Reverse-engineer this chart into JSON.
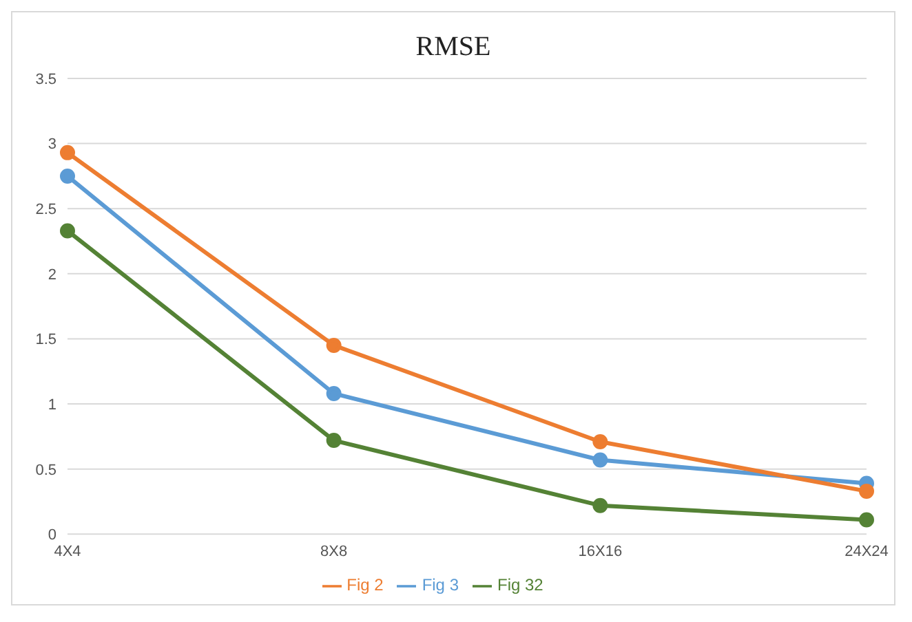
{
  "chart_data": {
    "type": "line",
    "title": "RMSE",
    "categories": [
      "4X4",
      "8X8",
      "16X16",
      "24X24"
    ],
    "series": [
      {
        "name": "Fig 3",
        "color": "#5b9bd5",
        "values": [
          2.75,
          1.08,
          0.57,
          0.39
        ]
      },
      {
        "name": "Fig 2",
        "color": "#ed7d31",
        "values": [
          2.93,
          1.45,
          0.71,
          0.33
        ]
      },
      {
        "name": "Fig 32",
        "color": "#548235",
        "values": [
          2.33,
          0.72,
          0.22,
          0.11
        ]
      }
    ],
    "ylim": [
      0,
      3.5
    ],
    "yticks": [
      0,
      0.5,
      1,
      1.5,
      2,
      2.5,
      3,
      3.5
    ],
    "grid": "y",
    "legend": "bottom",
    "marker": "circle",
    "line_style": "solid"
  }
}
